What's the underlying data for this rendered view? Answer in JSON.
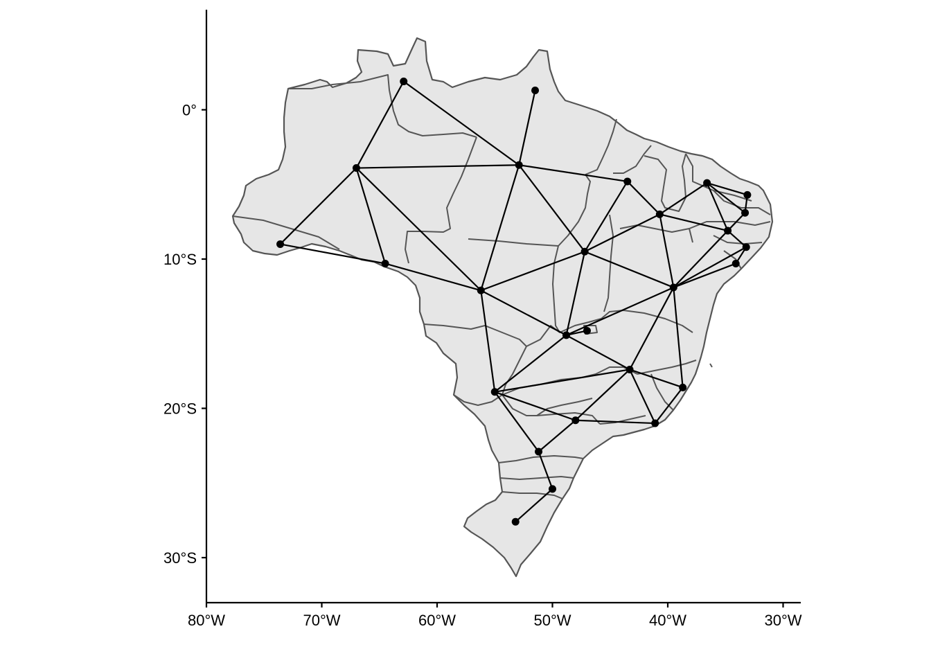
{
  "map": {
    "x_ticks": [
      {
        "lon": -80,
        "label": "80°W"
      },
      {
        "lon": -70,
        "label": "70°W"
      },
      {
        "lon": -60,
        "label": "60°W"
      },
      {
        "lon": -50,
        "label": "50°W"
      },
      {
        "lon": -40,
        "label": "40°W"
      },
      {
        "lon": -30,
        "label": "30°W"
      }
    ],
    "y_ticks": [
      {
        "lat": 0,
        "label": "0°"
      },
      {
        "lat": -10,
        "label": "10°S"
      },
      {
        "lat": -20,
        "label": "20°S"
      },
      {
        "lat": -30,
        "label": "30°S"
      }
    ],
    "colors": {
      "land": "#e6e6e6",
      "border": "#555555",
      "network": "#000000"
    },
    "nodes": [
      {
        "id": "roraima",
        "lon": -62.9,
        "lat": 1.9
      },
      {
        "id": "amapa",
        "lon": -51.5,
        "lat": 1.3
      },
      {
        "id": "amazonas",
        "lon": -67.0,
        "lat": -3.9
      },
      {
        "id": "para",
        "lon": -52.9,
        "lat": -3.7
      },
      {
        "id": "acre",
        "lon": -73.6,
        "lat": -9.0
      },
      {
        "id": "rondonia",
        "lon": -64.5,
        "lat": -10.3
      },
      {
        "id": "maranhao",
        "lon": -43.5,
        "lat": -4.8
      },
      {
        "id": "piaui",
        "lon": -40.7,
        "lat": -7.0
      },
      {
        "id": "ceara",
        "lon": -36.6,
        "lat": -4.9
      },
      {
        "id": "rio-grande-do-norte",
        "lon": -33.1,
        "lat": -5.7
      },
      {
        "id": "paraiba",
        "lon": -33.3,
        "lat": -6.9
      },
      {
        "id": "pernambuco",
        "lon": -34.8,
        "lat": -8.1
      },
      {
        "id": "alagoas",
        "lon": -33.2,
        "lat": -9.2
      },
      {
        "id": "sergipe",
        "lon": -34.1,
        "lat": -10.3
      },
      {
        "id": "tocantins",
        "lon": -47.2,
        "lat": -9.5
      },
      {
        "id": "mato-grosso",
        "lon": -56.2,
        "lat": -12.1
      },
      {
        "id": "bahia",
        "lon": -39.5,
        "lat": -11.9
      },
      {
        "id": "goias",
        "lon": -48.8,
        "lat": -15.1
      },
      {
        "id": "distrito-federal",
        "lon": -47.0,
        "lat": -14.8
      },
      {
        "id": "minas-gerais",
        "lon": -43.3,
        "lat": -17.4
      },
      {
        "id": "mato-grosso-do-sul",
        "lon": -55.0,
        "lat": -18.9
      },
      {
        "id": "espirito-santo",
        "lon": -38.7,
        "lat": -18.6
      },
      {
        "id": "sao-paulo",
        "lon": -48.0,
        "lat": -20.8
      },
      {
        "id": "rio-de-janeiro",
        "lon": -41.1,
        "lat": -21.0
      },
      {
        "id": "parana",
        "lon": -51.2,
        "lat": -22.9
      },
      {
        "id": "santa-catarina",
        "lon": -50.0,
        "lat": -25.4
      },
      {
        "id": "rio-grande-do-sul",
        "lon": -53.2,
        "lat": -27.6
      }
    ],
    "edges": [
      [
        "roraima",
        "amazonas"
      ],
      [
        "roraima",
        "para"
      ],
      [
        "amapa",
        "para"
      ],
      [
        "amazonas",
        "para"
      ],
      [
        "amazonas",
        "acre"
      ],
      [
        "amazonas",
        "rondonia"
      ],
      [
        "amazonas",
        "mato-grosso"
      ],
      [
        "acre",
        "rondonia"
      ],
      [
        "rondonia",
        "mato-grosso"
      ],
      [
        "para",
        "maranhao"
      ],
      [
        "para",
        "tocantins"
      ],
      [
        "para",
        "mato-grosso"
      ],
      [
        "maranhao",
        "piaui"
      ],
      [
        "maranhao",
        "tocantins"
      ],
      [
        "piaui",
        "ceara"
      ],
      [
        "piaui",
        "pernambuco"
      ],
      [
        "piaui",
        "bahia"
      ],
      [
        "piaui",
        "tocantins"
      ],
      [
        "ceara",
        "rio-grande-do-norte"
      ],
      [
        "ceara",
        "paraiba"
      ],
      [
        "ceara",
        "pernambuco"
      ],
      [
        "rio-grande-do-norte",
        "paraiba"
      ],
      [
        "paraiba",
        "pernambuco"
      ],
      [
        "pernambuco",
        "alagoas"
      ],
      [
        "pernambuco",
        "bahia"
      ],
      [
        "alagoas",
        "sergipe"
      ],
      [
        "alagoas",
        "bahia"
      ],
      [
        "sergipe",
        "bahia"
      ],
      [
        "tocantins",
        "mato-grosso"
      ],
      [
        "tocantins",
        "bahia"
      ],
      [
        "tocantins",
        "goias"
      ],
      [
        "mato-grosso",
        "goias"
      ],
      [
        "mato-grosso",
        "mato-grosso-do-sul"
      ],
      [
        "bahia",
        "goias"
      ],
      [
        "bahia",
        "minas-gerais"
      ],
      [
        "bahia",
        "espirito-santo"
      ],
      [
        "goias",
        "distrito-federal"
      ],
      [
        "goias",
        "minas-gerais"
      ],
      [
        "goias",
        "mato-grosso-do-sul"
      ],
      [
        "minas-gerais",
        "mato-grosso-do-sul"
      ],
      [
        "minas-gerais",
        "espirito-santo"
      ],
      [
        "minas-gerais",
        "sao-paulo"
      ],
      [
        "minas-gerais",
        "rio-de-janeiro"
      ],
      [
        "espirito-santo",
        "rio-de-janeiro"
      ],
      [
        "mato-grosso-do-sul",
        "sao-paulo"
      ],
      [
        "mato-grosso-do-sul",
        "parana"
      ],
      [
        "sao-paulo",
        "rio-de-janeiro"
      ],
      [
        "sao-paulo",
        "parana"
      ],
      [
        "parana",
        "santa-catarina"
      ],
      [
        "santa-catarina",
        "rio-grande-do-sul"
      ]
    ]
  }
}
